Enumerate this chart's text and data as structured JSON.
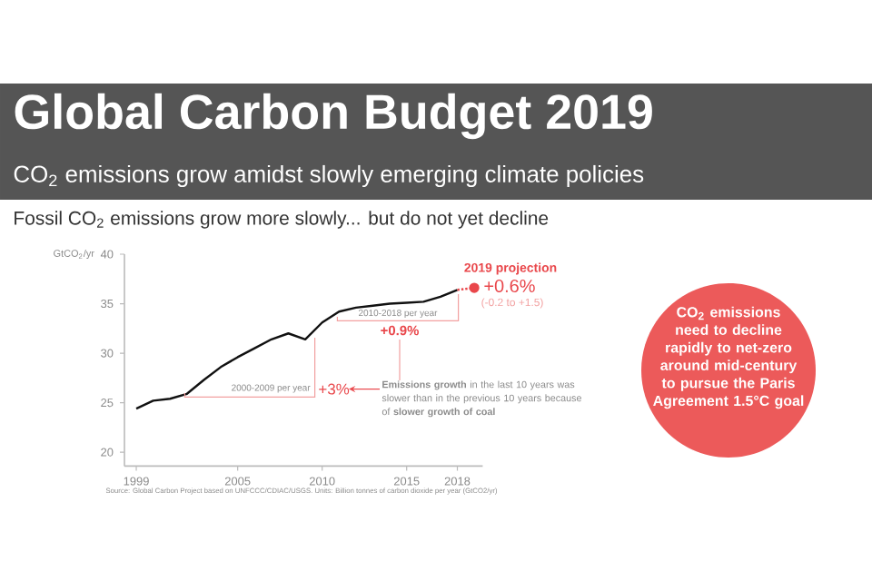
{
  "chart_data": {
    "type": "line",
    "title": "Global Carbon Budget 2019",
    "subtitle": "CO$_{2}$ emissions grow amidst slowly emerging climate policies",
    "ylabel": "GtCO$_{2}$/yr",
    "x": [
      1999,
      2000,
      2001,
      2002,
      2003,
      2004,
      2005,
      2006,
      2007,
      2008,
      2009,
      2010,
      2011,
      2012,
      2013,
      2014,
      2015,
      2016,
      2017,
      2018
    ],
    "series": [
      {
        "color": "#111111",
        "values": [
          24.4,
          25.2,
          25.4,
          25.9,
          27.3,
          28.6,
          29.6,
          30.5,
          31.4,
          32.0,
          31.4,
          33.1,
          34.2,
          34.6,
          34.8,
          35.0,
          35.1,
          35.2,
          35.7,
          36.4
        ]
      },
      {
        "x": [
          2018,
          2019
        ],
        "color": "#e9474b",
        "values": [
          36.4,
          36.6
        ],
        "line_style": "dotted",
        "marker": "circle"
      }
    ],
    "xlim": [
      1998.3,
      2019.5
    ],
    "ylim": [
      18.6,
      40
    ],
    "xticks": [
      1999,
      2005,
      2010,
      2015,
      2018
    ],
    "yticks": [
      20,
      25,
      30,
      35,
      40
    ],
    "annotations": [
      "Fossil CO$_{2}$ emissions grow more slowly... but do not yet decline",
      "2019 projection",
      "+0.6%",
      "(-0.2 to +1.5)",
      "2010-2018 per year",
      "+0.9%",
      "2000-2009 per year",
      "+3%",
      "**Emissions growth** in the last 10 years was slower than in the previous 10 years because of **slower growth of coal**",
      "CO$_{2}$ emissions need to decline rapidly to net-zero around mid-century to pursue the Paris Agreement 1.5°C goal",
      "Source: Global Carbon Project based on UNFCCC/CDIAC/USGS. Units: Billion tonnes of carbon dioxide per year (GtCO2/yr)"
    ]
  }
}
